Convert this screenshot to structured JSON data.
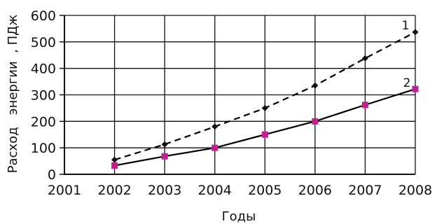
{
  "chart_data": {
    "type": "line",
    "title": "",
    "xlabel": "Годы",
    "ylabel": "Расход   энергии  , ПДж",
    "x_ticks": [
      "2001",
      "2002",
      "2003",
      "2004",
      "2005",
      "2006",
      "2007",
      "2008"
    ],
    "y_ticks": [
      "0",
      "100",
      "200",
      "300",
      "400",
      "500",
      "600"
    ],
    "xlim": [
      2001,
      2008
    ],
    "ylim": [
      0,
      600
    ],
    "grid": true,
    "legend": "none",
    "series": [
      {
        "name": "1",
        "line_style": "dashed",
        "marker": "diamond",
        "color": "#000000",
        "marker_color": "#111111",
        "x": [
          2002,
          2003,
          2004,
          2005,
          2006,
          2007,
          2008
        ],
        "values": [
          55,
          113,
          180,
          250,
          335,
          438,
          537
        ]
      },
      {
        "name": "2",
        "line_style": "solid",
        "marker": "square",
        "color": "#000000",
        "marker_color": "#c41e8f",
        "x": [
          2002,
          2003,
          2004,
          2005,
          2006,
          2007,
          2008
        ],
        "values": [
          33,
          68,
          100,
          150,
          200,
          262,
          322
        ]
      }
    ]
  }
}
